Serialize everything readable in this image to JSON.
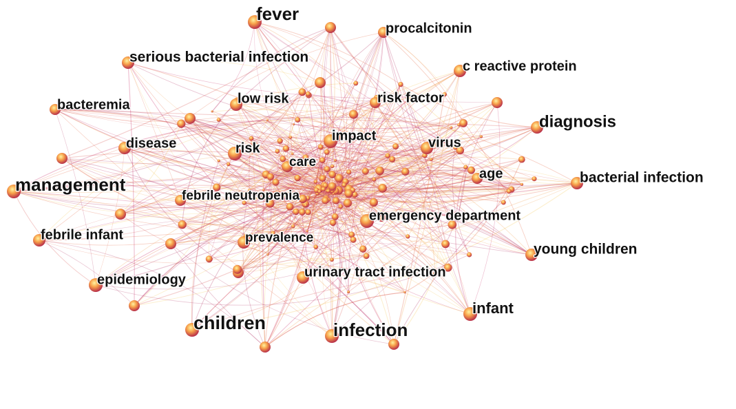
{
  "nodes": [
    {
      "label": "fever"
    },
    {
      "label": "procalcitonin"
    },
    {
      "label": "serious bacterial infection"
    },
    {
      "label": "c reactive protein"
    },
    {
      "label": "bacteremia"
    },
    {
      "label": "low risk"
    },
    {
      "label": "risk factor"
    },
    {
      "label": "diagnosis"
    },
    {
      "label": "disease"
    },
    {
      "label": "impact"
    },
    {
      "label": "risk"
    },
    {
      "label": "virus"
    },
    {
      "label": "care"
    },
    {
      "label": "age"
    },
    {
      "label": "management"
    },
    {
      "label": "bacterial infection"
    },
    {
      "label": "febrile neutropenia"
    },
    {
      "label": "emergency department"
    },
    {
      "label": "febrile infant"
    },
    {
      "label": "prevalence"
    },
    {
      "label": "young children"
    },
    {
      "label": "urinary tract infection"
    },
    {
      "label": "epidemiology"
    },
    {
      "label": "infant"
    },
    {
      "label": "children"
    },
    {
      "label": "infection"
    }
  ]
}
